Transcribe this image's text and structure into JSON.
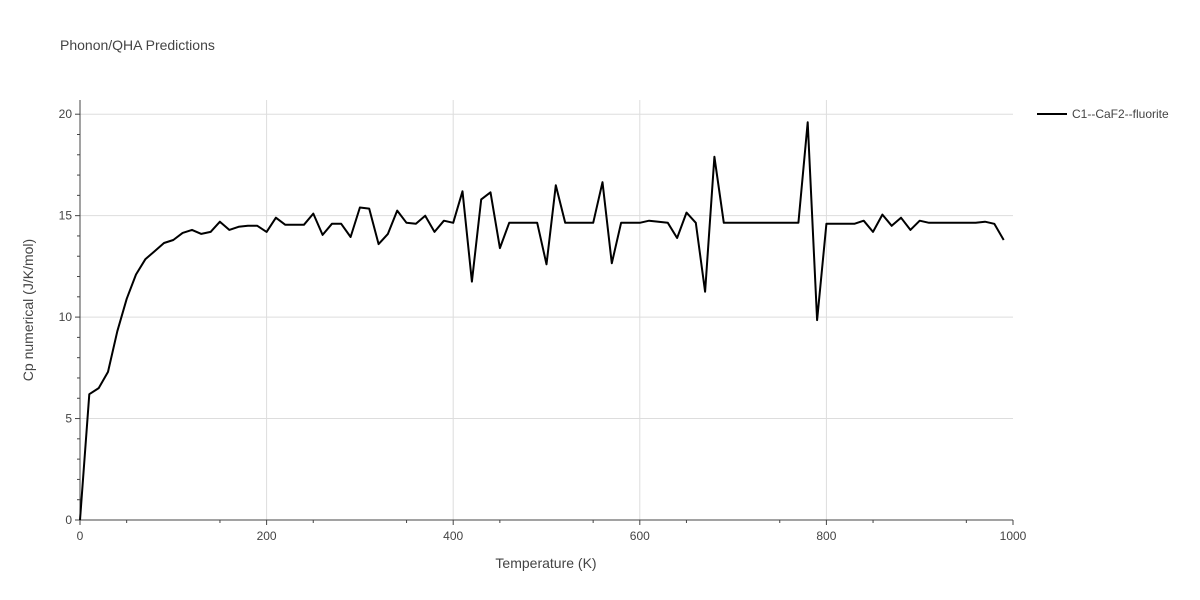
{
  "chart_data": {
    "type": "line",
    "title": "Phonon/QHA Predictions",
    "xlabel": "Temperature (K)",
    "ylabel": "Cp numerical (J/K/mol)",
    "xlim": [
      0,
      1000
    ],
    "ylim": [
      0,
      20.7
    ],
    "xticks": [
      0,
      200,
      400,
      600,
      800,
      1000
    ],
    "xtick_labels": [
      "0",
      "200",
      "400",
      "600",
      "800",
      "1000"
    ],
    "yticks": [
      0,
      5,
      10,
      15,
      20
    ],
    "ytick_labels": [
      "0",
      "5",
      "10",
      "15",
      "20"
    ],
    "grid": true,
    "legend_position": "top-right",
    "series": [
      {
        "name": "C1--CaF2--fluorite",
        "color": "#000000",
        "x": [
          0,
          10,
          20,
          30,
          40,
          50,
          60,
          70,
          80,
          90,
          100,
          110,
          120,
          130,
          140,
          150,
          160,
          170,
          180,
          190,
          200,
          210,
          220,
          230,
          240,
          250,
          260,
          270,
          280,
          290,
          300,
          310,
          320,
          330,
          340,
          350,
          360,
          370,
          380,
          390,
          400,
          410,
          420,
          430,
          440,
          450,
          460,
          470,
          480,
          490,
          500,
          510,
          520,
          530,
          540,
          550,
          560,
          570,
          580,
          590,
          600,
          610,
          620,
          630,
          640,
          650,
          660,
          670,
          680,
          690,
          700,
          710,
          720,
          730,
          740,
          750,
          760,
          770,
          780,
          790,
          800,
          810,
          820,
          830,
          840,
          850,
          860,
          870,
          880,
          890,
          900,
          910,
          920,
          930,
          940,
          950,
          960,
          970,
          980,
          990
        ],
        "y": [
          0,
          6.2,
          6.5,
          7.3,
          9.3,
          10.9,
          12.1,
          12.85,
          13.25,
          13.65,
          13.8,
          14.15,
          14.3,
          14.1,
          14.2,
          14.7,
          14.3,
          14.45,
          14.5,
          14.5,
          14.2,
          14.9,
          14.55,
          14.55,
          14.55,
          15.1,
          14.05,
          14.6,
          14.6,
          13.95,
          15.4,
          15.35,
          13.6,
          14.1,
          15.25,
          14.65,
          14.6,
          15.0,
          14.2,
          14.75,
          14.65,
          16.2,
          11.75,
          15.8,
          16.15,
          13.4,
          14.65,
          14.65,
          14.65,
          14.65,
          12.6,
          16.5,
          14.65,
          14.65,
          14.65,
          14.65,
          16.65,
          12.65,
          14.65,
          14.65,
          14.65,
          14.75,
          14.7,
          14.65,
          13.9,
          15.15,
          14.65,
          11.25,
          17.9,
          14.65,
          14.65,
          14.65,
          14.65,
          14.65,
          14.65,
          14.65,
          14.65,
          14.65,
          19.6,
          9.85,
          14.6,
          14.6,
          14.6,
          14.6,
          14.75,
          14.2,
          15.05,
          14.5,
          14.9,
          14.3,
          14.75,
          14.65,
          14.65,
          14.65,
          14.65,
          14.65,
          14.65,
          14.7,
          14.6,
          13.8
        ]
      }
    ]
  }
}
